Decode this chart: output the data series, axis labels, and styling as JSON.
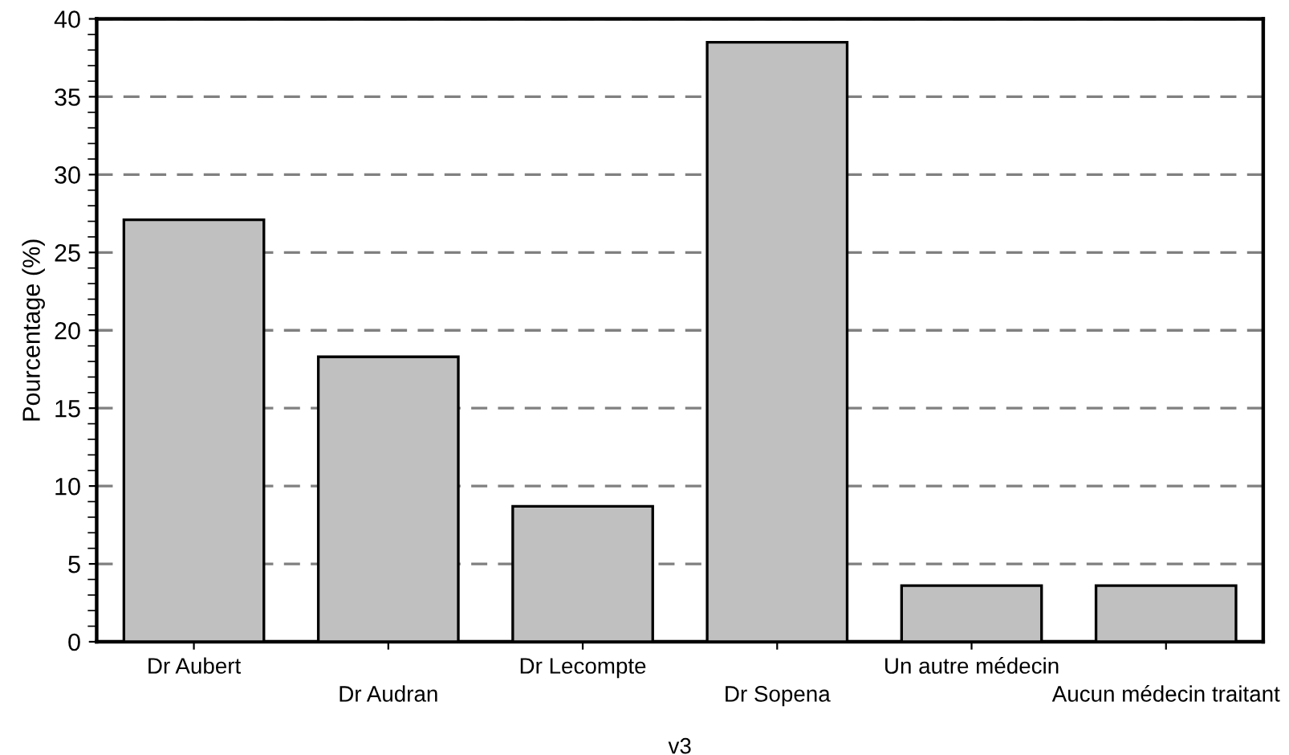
{
  "chart_data": {
    "type": "bar",
    "xlabel": "v3",
    "ylabel": "Pourcentage (%)",
    "categories": [
      "Dr Aubert",
      "Dr Audran",
      "Dr Lecompte",
      "Dr Sopena",
      "Un autre médecin",
      "Aucun médecin traitant"
    ],
    "values": [
      27.1,
      18.3,
      8.7,
      38.5,
      3.6,
      3.6
    ],
    "color": "#c0c0c0",
    "ylim": [
      0,
      40
    ],
    "yticks": [
      0,
      5,
      10,
      15,
      20,
      25,
      30,
      35,
      40
    ],
    "grid": "y"
  }
}
